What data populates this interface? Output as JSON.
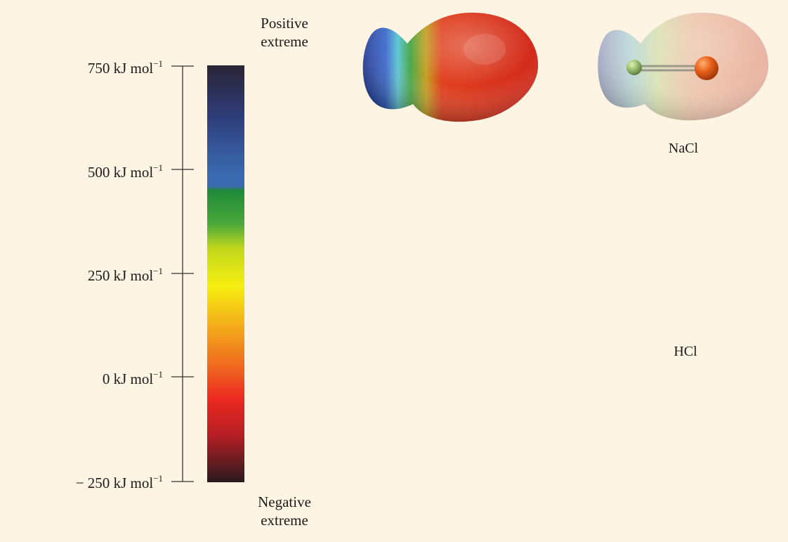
{
  "scale": {
    "top_label": [
      "Positive",
      "extreme"
    ],
    "bottom_label": [
      "Negative",
      "extreme"
    ],
    "ticks": [
      {
        "value": "750",
        "unit": "kJ mol",
        "exp": "−1"
      },
      {
        "value": "500",
        "unit": "kJ mol",
        "exp": "−1"
      },
      {
        "value": "250",
        "unit": "kJ mol",
        "exp": "−1"
      },
      {
        "value": "0",
        "unit": "kJ mol",
        "exp": "−1"
      },
      {
        "value": "− 250",
        "unit": "kJ mol",
        "exp": "−1"
      }
    ],
    "colors": [
      "#2a2436",
      "#2e3c78",
      "#3a6ab0",
      "#1f8a3a",
      "#8ec02a",
      "#f6ee10",
      "#f4a21a",
      "#ec3a22",
      "#b31e24",
      "#2a1a1e"
    ]
  },
  "molecules": [
    {
      "label": "NaCl"
    },
    {
      "label": "HCl"
    },
    {
      "label": ""
    }
  ]
}
